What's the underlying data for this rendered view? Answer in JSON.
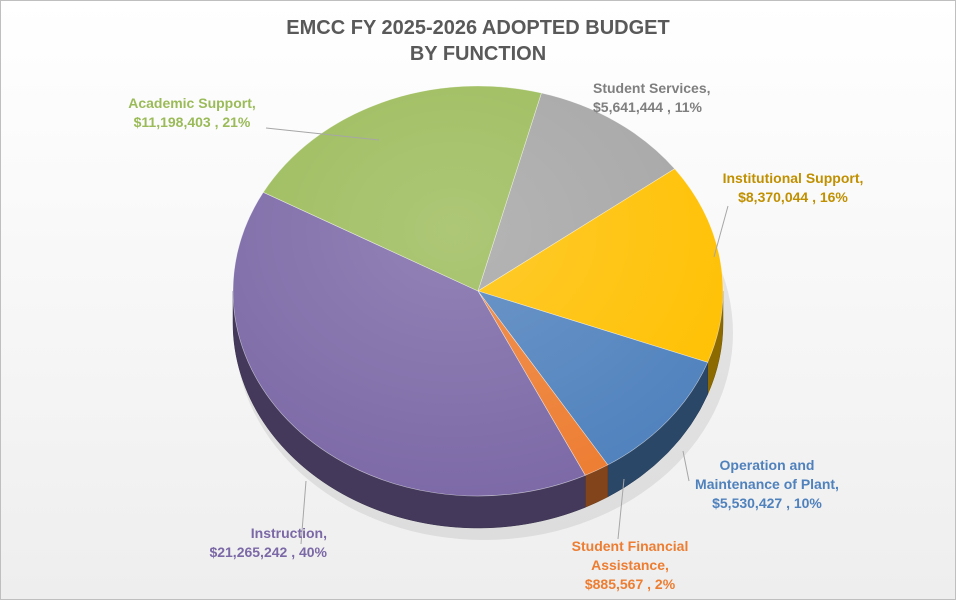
{
  "chart_data": {
    "type": "pie",
    "title": [
      "EMCC FY 2025-2026 ADOPTED BUDGET",
      "BY FUNCTION"
    ],
    "slices": [
      {
        "key": "student-services",
        "label_lines": [
          "Student Services,",
          "$5,641,444 , 11%"
        ],
        "value": 5641444,
        "percent": 11,
        "color": "#a5a5a5",
        "label_color": "#7f7f7f"
      },
      {
        "key": "institutional-support",
        "label_lines": [
          "Institutional Support,",
          "$8,370,044 , 16%"
        ],
        "value": 8370044,
        "percent": 16,
        "color": "#ffc000",
        "label_color": "#c09000"
      },
      {
        "key": "operation-maintenance",
        "label_lines": [
          "Operation and",
          "Maintenance of Plant,",
          "$5,530,427 , 10%"
        ],
        "value": 5530427,
        "percent": 10,
        "color": "#4f81bd",
        "label_color": "#4f81bd"
      },
      {
        "key": "student-financial-assistance",
        "label_lines": [
          "Student Financial",
          "Assistance,",
          "$885,567 , 2%"
        ],
        "value": 885567,
        "percent": 2,
        "color": "#ed7d31",
        "label_color": "#ed7d31"
      },
      {
        "key": "instruction",
        "label_lines": [
          "Instruction,",
          "$21,265,242 , 40%"
        ],
        "value": 21265242,
        "percent": 40,
        "color": "#7b68a6",
        "label_color": "#7b68a6"
      },
      {
        "key": "academic-support",
        "label_lines": [
          "Academic Support,",
          "$11,198,403 , 21%"
        ],
        "value": 11198403,
        "percent": 21,
        "color": "#9bbb59",
        "label_color": "#9bbb59"
      }
    ]
  }
}
